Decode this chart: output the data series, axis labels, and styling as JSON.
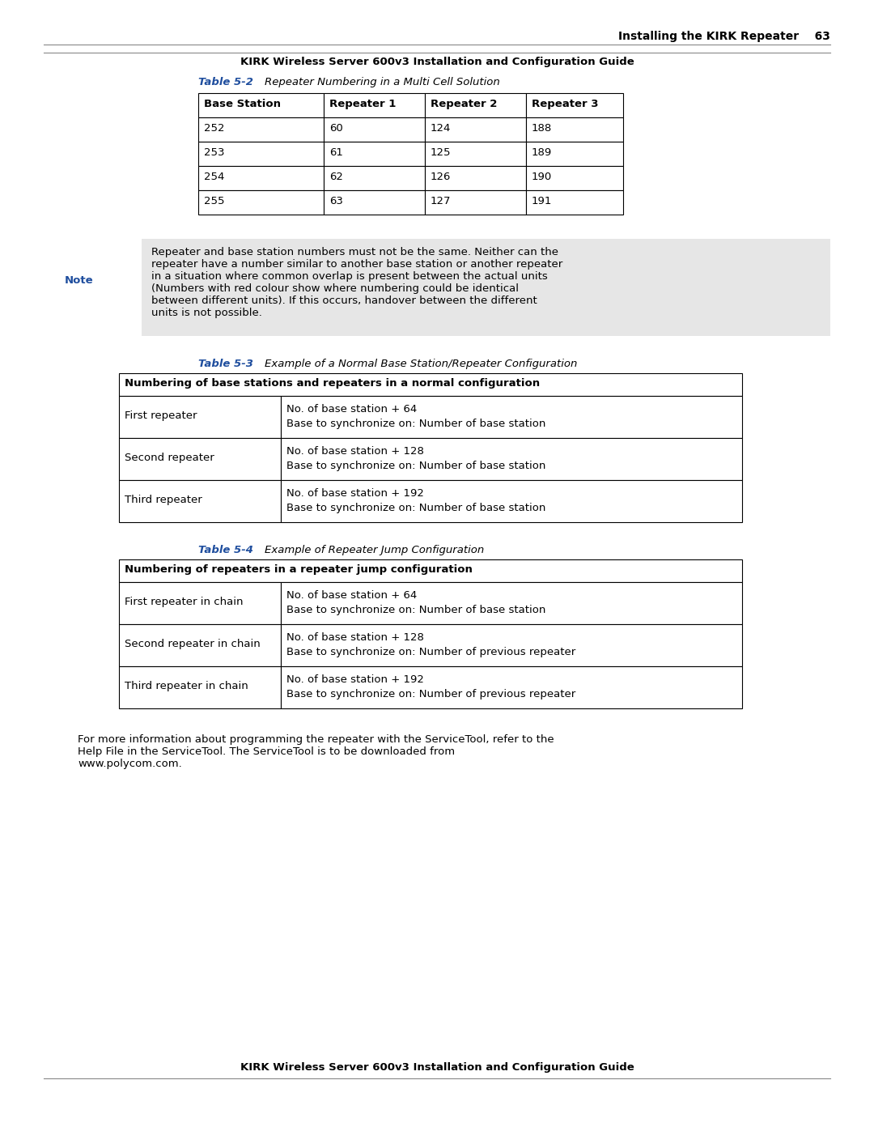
{
  "page_bg": "#ffffff",
  "header_text": "Installing the KIRK Repeater    63",
  "footer_text": "KIRK Wireless Server 600v3 Installation and Configuration Guide",
  "table2_title_label": "Table 5-2",
  "table2_title_desc": "    Repeater Numbering in a Multi Cell Solution",
  "table2_headers": [
    "Base Station",
    "Repeater 1",
    "Repeater 2",
    "Repeater 3"
  ],
  "table2_rows": [
    [
      "252",
      "60",
      "124",
      "188"
    ],
    [
      "253",
      "61",
      "125",
      "189"
    ],
    [
      "254",
      "62",
      "126",
      "190"
    ],
    [
      "255",
      "63",
      "127",
      "191"
    ]
  ],
  "note_label": "Note",
  "note_text": "Repeater and base station numbers must not be the same. Neither can the\nrepeater have a number similar to another base station or another repeater\nin a situation where common overlap is present between the actual units\n(Numbers with red colour show where numbering could be identical\nbetween different units). If this occurs, handover between the different\nunits is not possible.",
  "note_bg": "#e6e6e6",
  "table3_title_label": "Table 5-3",
  "table3_title_desc": "    Example of a Normal Base Station/Repeater Configuration",
  "table3_header": "Numbering of base stations and repeaters in a normal configuration",
  "table3_rows": [
    [
      "First repeater",
      "No. of base station + 64",
      "Base to synchronize on: Number of base station"
    ],
    [
      "Second repeater",
      "No. of base station + 128",
      "Base to synchronize on: Number of base station"
    ],
    [
      "Third repeater",
      "No. of base station + 192",
      "Base to synchronize on: Number of base station"
    ]
  ],
  "table4_title_label": "Table 5-4",
  "table4_title_desc": "    Example of Repeater Jump Configuration",
  "table4_header": "Numbering of repeaters in a repeater jump configuration",
  "table4_rows": [
    [
      "First repeater in chain",
      "No. of base station + 64",
      "Base to synchronize on: Number of base station"
    ],
    [
      "Second repeater in chain",
      "No. of base station + 128",
      "Base to synchronize on: Number of previous repeater"
    ],
    [
      "Third repeater in chain",
      "No. of base station + 192",
      "Base to synchronize on: Number of previous repeater"
    ]
  ],
  "footer_body_text": "For more information about programming the repeater with the ServiceTool, refer to the\nHelp File in the ServiceTool. The ServiceTool is to be downloaded from\nwww.polycom.com.",
  "blue_color": "#1f4e9e",
  "black": "#000000",
  "gray_line": "#999999"
}
